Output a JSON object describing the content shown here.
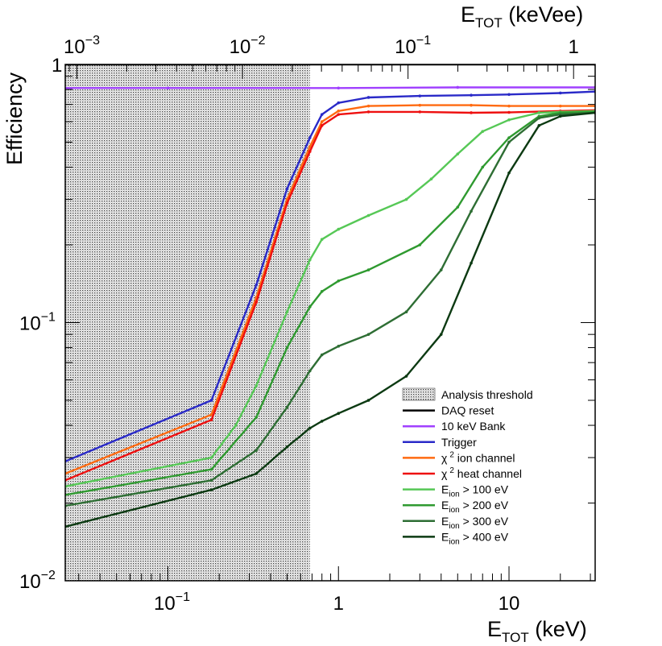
{
  "chart_data": {
    "type": "line",
    "title": "",
    "xlabel": {
      "main": "E",
      "sub": "TOT",
      "unit": " (keV)"
    },
    "x2label": {
      "main": "E",
      "sub": "TOT",
      "unit": " (keVee)"
    },
    "ylabel": "Efficiency",
    "xscale": "log",
    "yscale": "log",
    "xlim": [
      0.025,
      32
    ],
    "ylim": [
      0.01,
      1
    ],
    "x2lim": [
      0.00085,
      1.35
    ],
    "x_ticks": [
      {
        "value": 0.1,
        "mant": "10",
        "exp": "−1"
      },
      {
        "value": 1,
        "mant": "1",
        "exp": ""
      },
      {
        "value": 10,
        "mant": "10",
        "exp": ""
      }
    ],
    "x2_ticks": [
      {
        "value": 0.001,
        "mant": "10",
        "exp": "−3"
      },
      {
        "value": 0.01,
        "mant": "10",
        "exp": "−2"
      },
      {
        "value": 0.1,
        "mant": "10",
        "exp": "−1"
      },
      {
        "value": 1,
        "mant": "1",
        "exp": ""
      }
    ],
    "y_ticks": [
      {
        "value": 0.01,
        "mant": "10",
        "exp": "−2"
      },
      {
        "value": 0.1,
        "mant": "10",
        "exp": "−1"
      },
      {
        "value": 1,
        "mant": "1",
        "exp": ""
      }
    ],
    "threshold_band": {
      "label": "Analysis threshold",
      "x_from": 0.025,
      "x_to": 0.68
    },
    "legend_position": "bottom-right",
    "legend": [
      {
        "kind": "band",
        "label": "Analysis threshold",
        "color": "#555555"
      },
      {
        "kind": "line",
        "label": "DAQ reset",
        "color": "#000000"
      },
      {
        "kind": "line",
        "label": "10 keV Bank",
        "color": "#a040ff"
      },
      {
        "kind": "line",
        "label": "Trigger",
        "color": "#2a2ac8"
      },
      {
        "kind": "line",
        "pre": "χ",
        "sup": "2",
        "label": " ion channel",
        "color": "#ff6a10"
      },
      {
        "kind": "line",
        "pre": "χ",
        "sup": "2",
        "label": " heat channel",
        "color": "#ee1010"
      },
      {
        "kind": "line",
        "pre": "E",
        "sub": "ion",
        "label": " > 100 eV",
        "color": "#56c856"
      },
      {
        "kind": "line",
        "pre": "E",
        "sub": "ion",
        "label": " > 200 eV",
        "color": "#2f9a30"
      },
      {
        "kind": "line",
        "pre": "E",
        "sub": "ion",
        "label": " > 300 eV",
        "color": "#2e6e34"
      },
      {
        "kind": "line",
        "pre": "E",
        "sub": "ion",
        "label": " > 400 eV",
        "color": "#0c3a12"
      }
    ],
    "series": [
      {
        "name": "DAQ reset",
        "color": "#000000",
        "x": [
          0.025,
          32
        ],
        "y": [
          1.0,
          1.0
        ]
      },
      {
        "name": "10 keV Bank",
        "color": "#a040ff",
        "x": [
          0.025,
          0.1,
          1,
          5,
          32
        ],
        "y": [
          0.81,
          0.81,
          0.81,
          0.815,
          0.815
        ]
      },
      {
        "name": "Trigger",
        "color": "#2a2ac8",
        "x": [
          0.025,
          0.18,
          0.33,
          0.5,
          0.68,
          0.8,
          1.0,
          1.5,
          3,
          6,
          10,
          20,
          32
        ],
        "y": [
          0.029,
          0.05,
          0.14,
          0.33,
          0.52,
          0.64,
          0.71,
          0.745,
          0.755,
          0.76,
          0.765,
          0.775,
          0.785
        ]
      },
      {
        "name": "χ2 ion channel",
        "color": "#ff6a10",
        "x": [
          0.025,
          0.18,
          0.33,
          0.5,
          0.68,
          0.8,
          1.0,
          1.5,
          3,
          6,
          10,
          20,
          32
        ],
        "y": [
          0.026,
          0.044,
          0.125,
          0.3,
          0.48,
          0.6,
          0.66,
          0.69,
          0.695,
          0.695,
          0.69,
          0.69,
          0.69
        ]
      },
      {
        "name": "χ2 heat channel",
        "color": "#ee1010",
        "x": [
          0.025,
          0.18,
          0.33,
          0.5,
          0.68,
          0.8,
          1.0,
          1.5,
          3,
          6,
          10,
          20,
          32
        ],
        "y": [
          0.0245,
          0.042,
          0.12,
          0.29,
          0.46,
          0.58,
          0.64,
          0.655,
          0.655,
          0.65,
          0.652,
          0.66,
          0.665
        ]
      },
      {
        "name": "Eion > 100 eV",
        "color": "#56c856",
        "x": [
          0.025,
          0.18,
          0.25,
          0.33,
          0.5,
          0.68,
          0.8,
          1.0,
          1.5,
          2.5,
          3.5,
          5,
          7,
          10,
          15,
          20,
          32
        ],
        "y": [
          0.0232,
          0.03,
          0.04,
          0.057,
          0.11,
          0.175,
          0.21,
          0.23,
          0.26,
          0.3,
          0.36,
          0.45,
          0.55,
          0.61,
          0.65,
          0.655,
          0.66
        ]
      },
      {
        "name": "Eion > 200 eV",
        "color": "#2f9a30",
        "x": [
          0.025,
          0.18,
          0.33,
          0.5,
          0.68,
          0.8,
          1.0,
          1.5,
          3,
          5,
          7,
          10,
          15,
          20,
          32
        ],
        "y": [
          0.0215,
          0.027,
          0.043,
          0.08,
          0.115,
          0.132,
          0.145,
          0.16,
          0.2,
          0.28,
          0.4,
          0.52,
          0.63,
          0.65,
          0.655
        ]
      },
      {
        "name": "Eion > 300 eV",
        "color": "#2e6e34",
        "x": [
          0.025,
          0.18,
          0.33,
          0.5,
          0.68,
          0.8,
          1.0,
          1.5,
          2.5,
          4,
          6,
          10,
          15,
          20,
          32
        ],
        "y": [
          0.0195,
          0.0245,
          0.032,
          0.047,
          0.065,
          0.075,
          0.081,
          0.09,
          0.11,
          0.16,
          0.27,
          0.5,
          0.62,
          0.64,
          0.65
        ]
      },
      {
        "name": "Eion > 400 eV",
        "color": "#0c3a12",
        "x": [
          0.025,
          0.18,
          0.33,
          0.5,
          0.68,
          0.8,
          1.0,
          1.5,
          2.5,
          4,
          6,
          10,
          15,
          20,
          32
        ],
        "y": [
          0.0162,
          0.0225,
          0.026,
          0.033,
          0.039,
          0.0415,
          0.0445,
          0.05,
          0.062,
          0.09,
          0.17,
          0.38,
          0.58,
          0.63,
          0.65
        ]
      }
    ]
  }
}
